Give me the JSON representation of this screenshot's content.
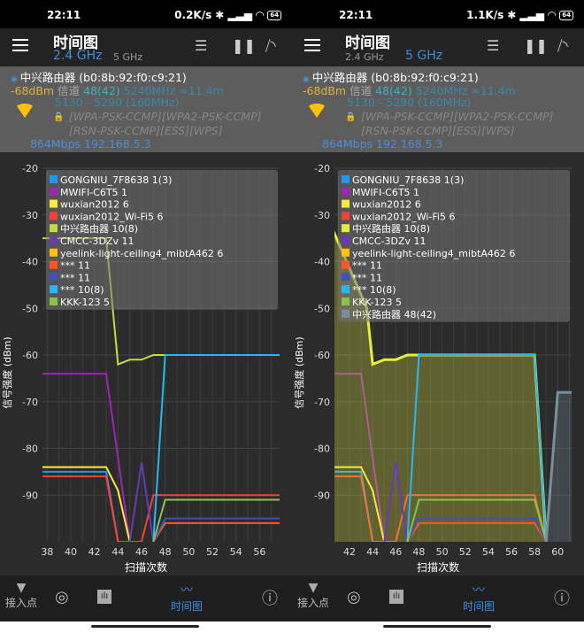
{
  "colors": {
    "accent": "#3d8fe0",
    "signal": "#e0b040",
    "channel": "#3ab0c8",
    "link": "#4a90d9"
  },
  "screens": [
    {
      "status": {
        "time": "22:11",
        "speed": "0.2K/s",
        "battery": "64"
      },
      "toolbar": {
        "title": "时间图",
        "tab_24": "2.4 GHz",
        "tab_5": "5 GHz",
        "active": "2.4"
      },
      "info": {
        "ssid": "中兴路由器 (b0:8b:92:f0:c9:21)",
        "signal": "-68dBm",
        "channel_label": "信道",
        "channel": "48(42)",
        "freq": "5240MHz ≈11.4m",
        "range": "5130 - 5290 (160MHz)",
        "caps1": "[WPA-PSK-CCMP][WPA2-PSK-CCMP]",
        "caps2": "[RSN-PSK-CCMP][ESS][WPS]",
        "link": "864Mbps 192.168.5.3"
      },
      "nav": {
        "access_points": "接入点",
        "time_graph": "时间图"
      }
    },
    {
      "status": {
        "time": "22:11",
        "speed": "1.1K/s",
        "battery": "64"
      },
      "toolbar": {
        "title": "时间图",
        "tab_24": "2.4 GHz",
        "tab_5": "5 GHz",
        "active": "5"
      },
      "info": {
        "ssid": "中兴路由器 (b0:8b:92:f0:c9:21)",
        "signal": "-68dBm",
        "channel_label": "信道",
        "channel": "48(42)",
        "freq": "5240MHz ≈11.4m",
        "range": "5130 - 5290 (160MHz)",
        "caps1": "[WPA-PSK-CCMP][WPA2-PSK-CCMP]",
        "caps2": "[RSN-PSK-CCMP][ESS][WPS]",
        "link": "864Mbps 192.168.5.3"
      },
      "nav": {
        "access_points": "接入点",
        "time_graph": "时间图"
      }
    }
  ],
  "chart_data": [
    {
      "type": "line",
      "xlabel": "扫描次数",
      "ylabel": "信号强度 (dBm)",
      "xlim": [
        37.6,
        57.7
      ],
      "ylim": [
        -100,
        -20
      ],
      "xticks": [
        38,
        40,
        42,
        44,
        46,
        48,
        50,
        52,
        54,
        56
      ],
      "yticks": [
        -20,
        -30,
        -40,
        -50,
        -60,
        -70,
        -80,
        -90
      ],
      "grid": true,
      "legend": "top-left",
      "series": [
        {
          "name": "GONGNIU_7F8638 1(3)",
          "color": "#2196f3",
          "points": [
            [
              37,
              -85
            ],
            [
              43,
              -85
            ],
            [
              44,
              -100
            ]
          ]
        },
        {
          "name": "MWIFI-C6T5 1",
          "color": "#9c27b0",
          "points": [
            [
              37,
              -64
            ],
            [
              43,
              -64
            ],
            [
              45,
              -100
            ]
          ]
        },
        {
          "name": "wuxian2012 6",
          "color": "#ffeb3b",
          "points": [
            [
              37,
              -84
            ],
            [
              43,
              -84
            ],
            [
              44,
              -89
            ],
            [
              45,
              -100
            ]
          ]
        },
        {
          "name": "wuxian2012_Wi-Fi5 6",
          "color": "#f44336",
          "points": [
            [
              37,
              -86
            ],
            [
              43,
              -86
            ],
            [
              44,
              -100
            ],
            [
              46,
              -100
            ],
            [
              47,
              -90
            ],
            [
              58,
              -90
            ]
          ]
        },
        {
          "name": "中兴路由器 10(8)",
          "color": "#c6dc3a",
          "points": [
            [
              37,
              -35
            ],
            [
              43,
              -35
            ],
            [
              44,
              -62
            ],
            [
              45,
              -61
            ],
            [
              46,
              -61
            ],
            [
              47,
              -60
            ],
            [
              48,
              -60
            ]
          ]
        },
        {
          "name": "CMCC-3DZv 11",
          "color": "#673ab7",
          "points": [
            [
              45,
              -100
            ],
            [
              46,
              -83
            ],
            [
              47,
              -100
            ]
          ]
        },
        {
          "name": "yeelink-light-ceiling4_mibtA462 6",
          "color": "#ffc107",
          "points": []
        },
        {
          "name": "*** 11",
          "color": "#ff5722",
          "points": [
            [
              47,
              -100
            ],
            [
              48,
              -96
            ],
            [
              58,
              -96
            ]
          ]
        },
        {
          "name": "*** 11",
          "color": "#3f51b5",
          "points": [
            [
              47,
              -100
            ],
            [
              48,
              -95
            ],
            [
              58,
              -95
            ]
          ]
        },
        {
          "name": "*** 10(8)",
          "color": "#29b6f6",
          "points": [
            [
              47,
              -100
            ],
            [
              48,
              -60
            ],
            [
              58,
              -60
            ]
          ]
        },
        {
          "name": "KKK-123 5",
          "color": "#8bc34a",
          "points": [
            [
              47,
              -100
            ],
            [
              48,
              -91
            ],
            [
              58,
              -91
            ]
          ]
        }
      ]
    },
    {
      "type": "line",
      "xlabel": "扫描次数",
      "ylabel": "信号强度 (dBm)",
      "xlim": [
        40.7,
        61.2
      ],
      "ylim": [
        -100,
        -20
      ],
      "xticks": [
        42,
        44,
        46,
        48,
        50,
        52,
        54,
        56,
        58,
        60
      ],
      "yticks": [
        -20,
        -30,
        -40,
        -50,
        -60,
        -70,
        -80,
        -90
      ],
      "grid": true,
      "legend": "top-left",
      "series": [
        {
          "name": "GONGNIU_7F8638 1(3)",
          "color": "#2196f3",
          "points": [
            [
              40,
              -85
            ],
            [
              43,
              -85
            ],
            [
              44,
              -100
            ]
          ]
        },
        {
          "name": "MWIFI-C6T5 1",
          "color": "#9c27b0",
          "points": [
            [
              40,
              -64
            ],
            [
              43,
              -64
            ],
            [
              45,
              -100
            ]
          ]
        },
        {
          "name": "wuxian2012 6",
          "color": "#ffeb3b",
          "points": [
            [
              40,
              -84
            ],
            [
              43,
              -84
            ],
            [
              44,
              -89
            ],
            [
              45,
              -100
            ]
          ]
        },
        {
          "name": "wuxian2012_Wi-Fi5 6",
          "color": "#f44336",
          "points": [
            [
              40,
              -86
            ],
            [
              43,
              -86
            ],
            [
              44,
              -100
            ],
            [
              46,
              -100
            ],
            [
              47,
              -90
            ],
            [
              58,
              -90
            ],
            [
              59,
              -100
            ]
          ]
        },
        {
          "name": "中兴路由器 10(8)",
          "color": "#e6ee3c",
          "fill": true,
          "points": [
            [
              40,
              -30
            ],
            [
              43.5,
              -50
            ],
            [
              44,
              -62
            ],
            [
              45,
              -61
            ],
            [
              46,
              -61
            ],
            [
              47,
              -60
            ],
            [
              48,
              -60
            ],
            [
              58,
              -60
            ],
            [
              59,
              -100
            ]
          ]
        },
        {
          "name": "CMCC-3DZv 11",
          "color": "#673ab7",
          "points": [
            [
              45,
              -100
            ],
            [
              46,
              -83
            ],
            [
              47,
              -100
            ]
          ]
        },
        {
          "name": "yeelink-light-ceiling4_mibtA462 6",
          "color": "#ffc107",
          "points": []
        },
        {
          "name": "*** 11",
          "color": "#ff5722",
          "points": [
            [
              47,
              -100
            ],
            [
              48,
              -96
            ],
            [
              58,
              -96
            ],
            [
              59,
              -100
            ]
          ]
        },
        {
          "name": "*** 11",
          "color": "#3f51b5",
          "points": [
            [
              47,
              -100
            ],
            [
              48,
              -95
            ],
            [
              58,
              -95
            ],
            [
              59,
              -100
            ]
          ]
        },
        {
          "name": "*** 10(8)",
          "color": "#29b6f6",
          "points": [
            [
              47,
              -100
            ],
            [
              48,
              -60
            ],
            [
              58,
              -60
            ],
            [
              59,
              -100
            ]
          ]
        },
        {
          "name": "KKK-123 5",
          "color": "#8bc34a",
          "points": [
            [
              47,
              -100
            ],
            [
              48,
              -91
            ],
            [
              58,
              -91
            ],
            [
              59,
              -100
            ]
          ]
        },
        {
          "name": "中兴路由器 48(42)",
          "color": "#78909c",
          "fill": true,
          "points": [
            [
              59,
              -100
            ],
            [
              60,
              -68
            ],
            [
              61.2,
              -68
            ]
          ]
        }
      ]
    }
  ]
}
